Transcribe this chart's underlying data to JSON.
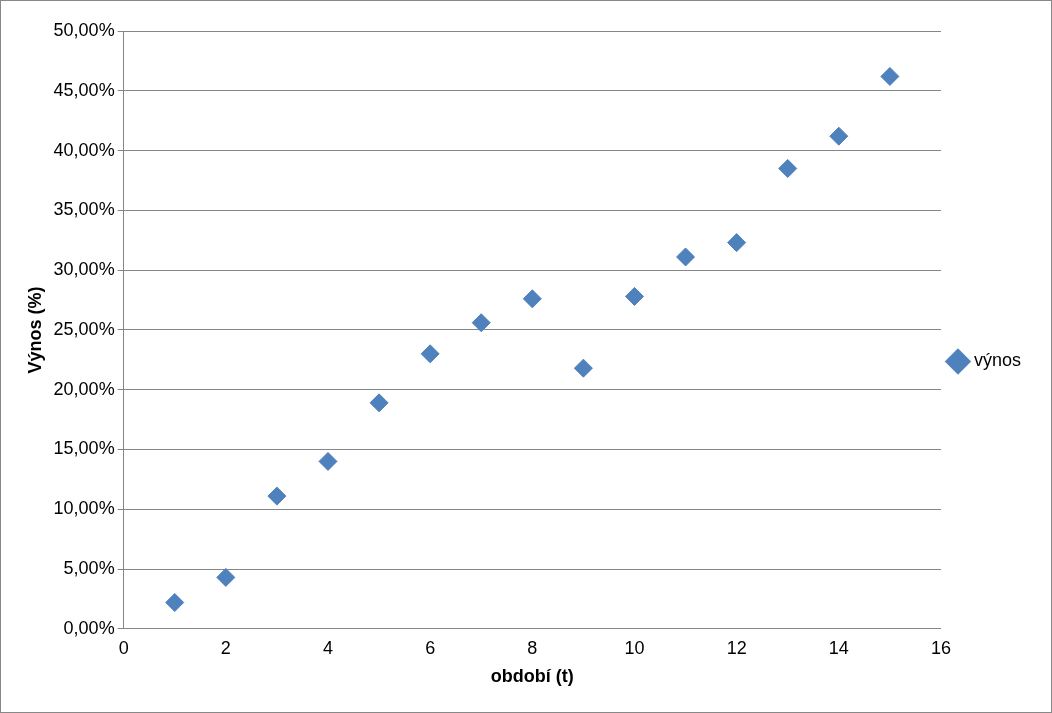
{
  "chart_data": {
    "type": "scatter",
    "xlabel": "období (t)",
    "ylabel": "Výnos (%)",
    "x": [
      1,
      2,
      3,
      4,
      5,
      6,
      7,
      8,
      9,
      10,
      11,
      12,
      13,
      14,
      15
    ],
    "series": [
      {
        "name": "výnos",
        "color": "#4f81bd",
        "values": [
          2.2,
          4.3,
          11.1,
          14.0,
          18.9,
          23.0,
          25.6,
          27.6,
          21.8,
          27.8,
          31.1,
          32.3,
          38.5,
          41.2,
          46.2
        ]
      }
    ],
    "xlim": [
      0,
      16
    ],
    "xticks": [
      0,
      2,
      4,
      6,
      8,
      10,
      12,
      14,
      16
    ],
    "ylim": [
      0,
      50
    ],
    "yticks": [
      {
        "value": 0,
        "label": "0,00%"
      },
      {
        "value": 5,
        "label": "5,00%"
      },
      {
        "value": 10,
        "label": "10,00%"
      },
      {
        "value": 15,
        "label": "15,00%"
      },
      {
        "value": 20,
        "label": "20,00%"
      },
      {
        "value": 25,
        "label": "25,00%"
      },
      {
        "value": 30,
        "label": "30,00%"
      },
      {
        "value": 35,
        "label": "35,00%"
      },
      {
        "value": 40,
        "label": "40,00%"
      },
      {
        "value": 45,
        "label": "45,00%"
      },
      {
        "value": 50,
        "label": "50,00%"
      }
    ],
    "grid": "y",
    "legend": "right",
    "marker": "diamond"
  }
}
